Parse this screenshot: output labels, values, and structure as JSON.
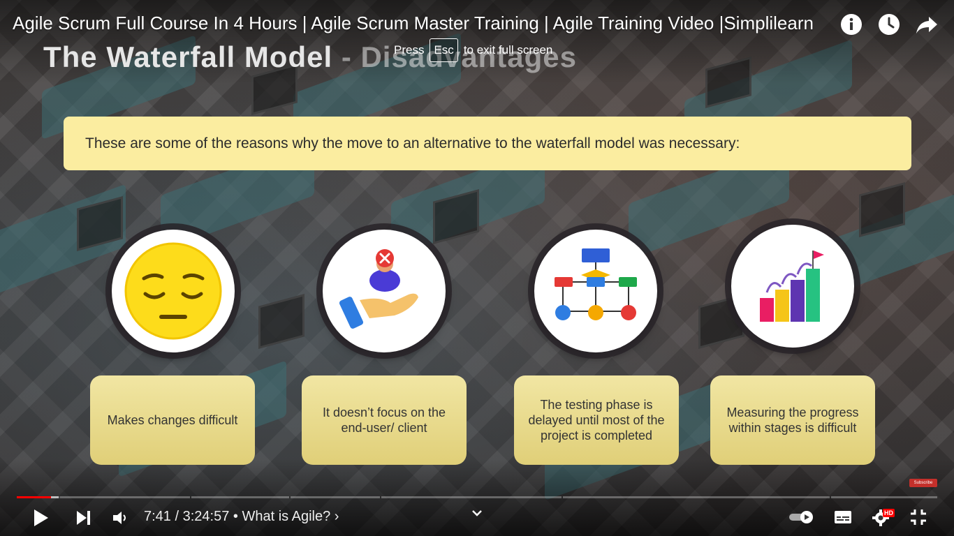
{
  "video": {
    "title": "Agile Scrum Full Course In 4 Hours | Agile Scrum Master Training | Agile Training Video |Simplilearn",
    "fullscreen_hint_prefix": "Press",
    "fullscreen_hint_key": "Esc",
    "fullscreen_hint_suffix": "to exit full screen"
  },
  "top_icons": [
    "info-icon",
    "watch-later-icon",
    "share-icon"
  ],
  "slide": {
    "title_main": "The Waterfall Model",
    "title_rest": " - Disadvantages",
    "banner": "These are some of the reasons why the move to an alternative to the waterfall model was necessary:",
    "items": [
      {
        "icon": "sad-face-icon",
        "text": "Makes changes difficult"
      },
      {
        "icon": "user-hand-rejected-icon",
        "text": "It doesn’t focus on the end-user/ client"
      },
      {
        "icon": "flowchart-icon",
        "text": "The testing phase is delayed until most of the project is completed"
      },
      {
        "icon": "progress-bars-flag-icon",
        "text": "Measuring the progress within stages is difficult"
      }
    ]
  },
  "player": {
    "current_time": "7:41",
    "separator": " / ",
    "duration": "3:24:57",
    "chapter_prefix": " • ",
    "chapter": "What is Agile?",
    "chapter_chevron": "›",
    "progress_fraction": 0.0375,
    "buffer_fraction": 0.047,
    "hd_badge": "HD",
    "watermark": "Subscribe",
    "colors": {
      "played": "#ff0000",
      "banner": "#fbeda0",
      "card": "#e9dc8e"
    }
  }
}
